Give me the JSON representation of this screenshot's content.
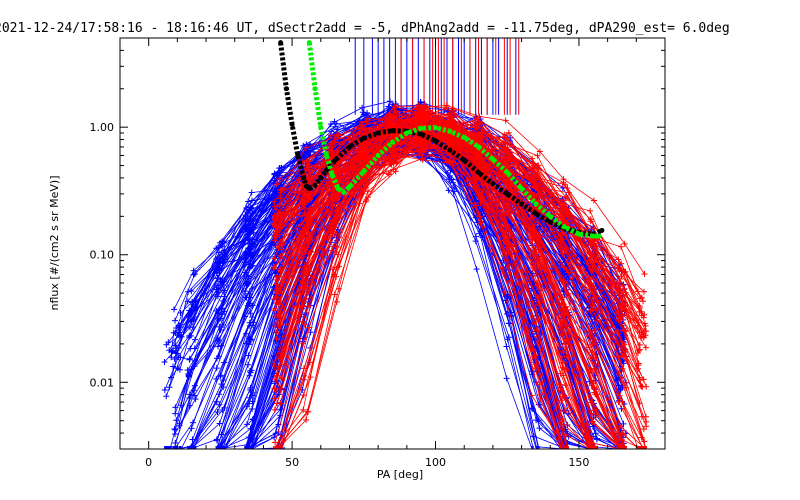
{
  "chart_data": {
    "type": "line",
    "title": "2021-12-24/17:58:16 - 18:16:46 UT, dSectr2add = -5, dPhAng2add = -11.75deg, dPA290_est=   6.0deg",
    "xlabel": "PA [deg]",
    "ylabel": "nflux [#/(cm2 s sr MeV)]",
    "xlim": [
      -10,
      180
    ],
    "ylim": [
      0.003,
      5
    ],
    "yscale": "log",
    "xticks": [
      0,
      50,
      100,
      150
    ],
    "xtick_labels": [
      "0",
      "50",
      "100",
      "150"
    ],
    "yticks": [
      0.01,
      0.1,
      1.0
    ],
    "ytick_labels": [
      "0.01",
      "0.10",
      "1.00"
    ],
    "grid": false,
    "legend": "none",
    "colors": {
      "blue": "#0000ff",
      "red": "#ff0000",
      "black": "#000000",
      "green": "#00ee00"
    },
    "series": [
      {
        "color": "black",
        "style": "thick-dotted",
        "x": [
          46,
          48,
          50,
          52,
          54,
          55,
          56,
          58,
          60,
          62,
          65,
          70,
          75,
          80,
          85,
          90,
          95,
          100,
          105,
          110,
          115,
          120,
          125,
          130,
          135,
          140,
          145,
          150,
          155,
          158
        ],
        "y": [
          4.6,
          2.0,
          1.05,
          0.6,
          0.4,
          0.345,
          0.33,
          0.35,
          0.4,
          0.46,
          0.55,
          0.7,
          0.82,
          0.9,
          0.94,
          0.93,
          0.88,
          0.78,
          0.66,
          0.55,
          0.44,
          0.36,
          0.3,
          0.25,
          0.21,
          0.18,
          0.16,
          0.15,
          0.145,
          0.155
        ]
      },
      {
        "color": "green",
        "style": "thick-dotted",
        "x": [
          56,
          58,
          60,
          62,
          64,
          66,
          68,
          70,
          75,
          80,
          85,
          90,
          95,
          100,
          105,
          110,
          115,
          120,
          125,
          130,
          135,
          140,
          145,
          150,
          155,
          157
        ],
        "y": [
          4.6,
          2.0,
          1.0,
          0.6,
          0.42,
          0.33,
          0.31,
          0.34,
          0.45,
          0.6,
          0.76,
          0.9,
          0.98,
          0.99,
          0.93,
          0.83,
          0.7,
          0.56,
          0.44,
          0.33,
          0.25,
          0.2,
          0.165,
          0.145,
          0.14,
          0.14
        ]
      }
    ],
    "profile_families": [
      {
        "color": "blue",
        "count": 160,
        "peak_pa": 90,
        "min_pa": 5,
        "max_pa": 165,
        "low_flux": 0.002
      },
      {
        "color": "red",
        "count": 110,
        "peak_pa": 95,
        "min_pa": 45,
        "max_pa": 175,
        "low_flux": 0.002
      }
    ],
    "spikes": {
      "blue_x": [
        72,
        75,
        78,
        80,
        82,
        84,
        86,
        88,
        90,
        92,
        94,
        96,
        98,
        100,
        102,
        104,
        106,
        108,
        110,
        112,
        114,
        116,
        118,
        120,
        122,
        125,
        128
      ],
      "red_x": [
        88,
        92,
        96,
        99,
        101,
        103,
        106,
        109,
        112,
        115,
        118,
        121,
        124,
        126,
        129
      ],
      "y_from": 1.25
    }
  }
}
